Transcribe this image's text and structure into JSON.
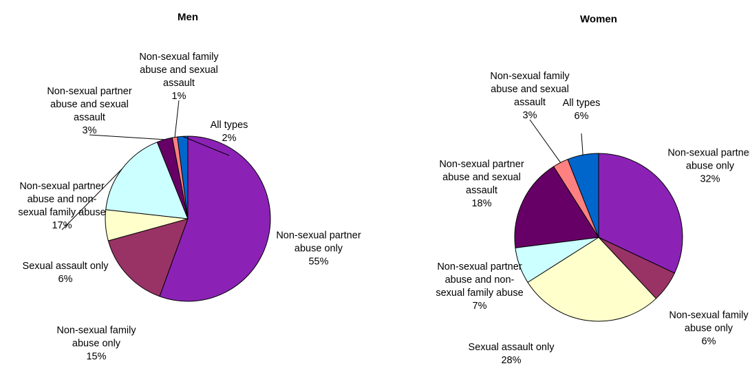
{
  "chart_data": [
    {
      "type": "pie",
      "title": "Men",
      "categories": [
        "Non-sexual partner abuse only",
        "Non-sexual family abuse only",
        "Sexual assault only",
        "Non-sexual partner abuse and non-sexual family abuse",
        "Non-sexual partner abuse and sexual assault",
        "Non-sexual family abuse and sexual assault",
        "All types"
      ],
      "values": [
        55,
        15,
        6,
        17,
        3,
        1,
        2
      ],
      "value_labels": [
        "55%",
        "15%",
        "6%",
        "17%",
        "3%",
        "1%",
        "2%"
      ],
      "colors": [
        "#8b22b5",
        "#993366",
        "#ffffcc",
        "#ccffff",
        "#660066",
        "#ff8080",
        "#0066cc"
      ]
    },
    {
      "type": "pie",
      "title": "Women",
      "categories": [
        "Non-sexual partner abuse only",
        "Non-sexual family abuse only",
        "Sexual assault only",
        "Non-sexual partner abuse and non-sexual family abuse",
        "Non-sexual partner abuse and sexual assault",
        "Non-sexual family abuse and sexual assault",
        "All types"
      ],
      "values": [
        32,
        6,
        28,
        7,
        18,
        3,
        6
      ],
      "value_labels": [
        "32%",
        "6%",
        "28%",
        "7%",
        "18%",
        "3%",
        "6%"
      ],
      "colors": [
        "#8b22b5",
        "#993366",
        "#ffffcc",
        "#ccffff",
        "#660066",
        "#ff8080",
        "#0066cc"
      ]
    }
  ]
}
